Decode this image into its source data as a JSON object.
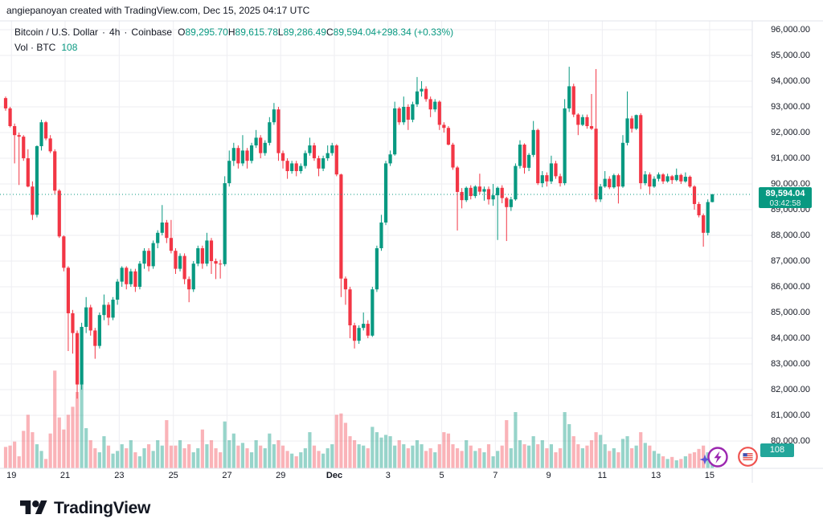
{
  "attribution": "angiepanoyan created with TradingView.com, Dec 15, 2025 04:17 UTC",
  "legend": {
    "symbol": "Bitcoin / U.S. Dollar",
    "separator": "·",
    "interval": "4h",
    "exchange": "Coinbase",
    "ohlc": [
      {
        "k": "O",
        "v": "89,295.70"
      },
      {
        "k": "H",
        "v": "89,615.78"
      },
      {
        "k": "L",
        "v": "89,286.49"
      },
      {
        "k": "C",
        "v": "89,594.04"
      }
    ],
    "change": "+298.34 (+0.33%)",
    "vol_label": "Vol · BTC",
    "vol_value": "108"
  },
  "price_scale": {
    "labels": [
      "96,000.00",
      "95,000.00",
      "94,000.00",
      "93,000.00",
      "92,000.00",
      "91,000.00",
      "90,000.00",
      "89,000.00",
      "88,000.00",
      "87,000.00",
      "86,000.00",
      "85,000.00",
      "84,000.00",
      "83,000.00",
      "82,000.00",
      "81,000.00",
      "80,000.00"
    ],
    "last": {
      "price": "89,594.04",
      "countdown": "03:42:58"
    },
    "volume_badge": "108"
  },
  "time_scale": {
    "ticks": [
      {
        "label": "19",
        "index": 1.3,
        "bold": false
      },
      {
        "label": "21",
        "index": 13.3,
        "bold": false
      },
      {
        "label": "23",
        "index": 25.4,
        "bold": false
      },
      {
        "label": "25",
        "index": 37.5,
        "bold": false
      },
      {
        "label": "27",
        "index": 49.5,
        "bold": false
      },
      {
        "label": "29",
        "index": 61.5,
        "bold": false
      },
      {
        "label": "Dec",
        "index": 73.5,
        "bold": true
      },
      {
        "label": "3",
        "index": 85.5,
        "bold": false
      },
      {
        "label": "5",
        "index": 97.5,
        "bold": false
      },
      {
        "label": "7",
        "index": 109.5,
        "bold": false
      },
      {
        "label": "9",
        "index": 121.4,
        "bold": false
      },
      {
        "label": "11",
        "index": 133.4,
        "bold": false
      },
      {
        "label": "13",
        "index": 145.4,
        "bold": false
      },
      {
        "label": "15",
        "index": 157.4,
        "bold": false
      }
    ]
  },
  "logo": {
    "text": "TradingView"
  },
  "icons": {
    "purple_lightning": "flash-boost-icon",
    "sparkle": "sparkle-icon",
    "us_flag": "us-economic-events-icon"
  },
  "colors": {
    "up": "#089981",
    "down": "#f23645",
    "vol_up": "rgba(8,153,129,0.42)",
    "vol_down": "rgba(242,54,69,0.38)",
    "grid": "#eeeef2",
    "axis_line": "#e0e3eb",
    "text": "#131722",
    "accent": "#089981",
    "price_badge_bg": "#089981",
    "vol_badge_bg": "#22a69a",
    "purple_icon": "#9c27b0",
    "sparkle_icon": "#5b55d6",
    "flag_ring": "#ef5350",
    "flag_blue": "#3f51b5"
  },
  "chart_data": {
    "type": "candlestick+volume",
    "symbol": "Bitcoin / U.S. Dollar",
    "interval": "4h",
    "exchange": "Coinbase",
    "x_range": {
      "start": "Nov 19",
      "end": "Dec 15",
      "candles_per_day": 6
    },
    "y_axis": {
      "min": 80000,
      "max": 96000,
      "tick_step": 1000,
      "grid": true
    },
    "last_candle": {
      "open": 89295.7,
      "high": 89615.78,
      "low": 89286.49,
      "close": 89594.04,
      "change": 298.34,
      "change_pct": 0.33,
      "volume_btc": 108
    },
    "current_price": 89594.04,
    "fields": [
      "open",
      "high",
      "low",
      "close",
      "volume_btc_est"
    ],
    "candles": [
      [
        93340,
        93400,
        92850,
        92940,
        160
      ],
      [
        92940,
        93000,
        92200,
        92250,
        170
      ],
      [
        92250,
        92350,
        90800,
        91900,
        200
      ],
      [
        91900,
        92000,
        89960,
        91840,
        90
      ],
      [
        91840,
        91900,
        90900,
        91000,
        280
      ],
      [
        91000,
        91350,
        89870,
        89900,
        400
      ],
      [
        89900,
        90100,
        88600,
        88800,
        270
      ],
      [
        88800,
        91500,
        88700,
        91470,
        180
      ],
      [
        91470,
        92500,
        91300,
        92400,
        130
      ],
      [
        92400,
        92450,
        91700,
        91770,
        70
      ],
      [
        91770,
        91900,
        91200,
        91270,
        260
      ],
      [
        91270,
        91350,
        89600,
        89740,
        730
      ],
      [
        89740,
        89800,
        87900,
        87960,
        380
      ],
      [
        87960,
        88000,
        86600,
        86740,
        290
      ],
      [
        86740,
        86800,
        83500,
        84970,
        400
      ],
      [
        84970,
        85100,
        83400,
        84200,
        460
      ],
      [
        84200,
        84300,
        81650,
        82200,
        570
      ],
      [
        82200,
        84600,
        82000,
        84440,
        660
      ],
      [
        84440,
        85600,
        84200,
        85200,
        300
      ],
      [
        85200,
        85300,
        84100,
        84300,
        210
      ],
      [
        84300,
        84400,
        83200,
        83700,
        150
      ],
      [
        83700,
        85000,
        83600,
        84900,
        120
      ],
      [
        84900,
        85700,
        84700,
        85300,
        240
      ],
      [
        85300,
        85400,
        84500,
        84800,
        170
      ],
      [
        84800,
        85600,
        84700,
        85500,
        110
      ],
      [
        85500,
        86300,
        85300,
        86200,
        130
      ],
      [
        86200,
        86800,
        86000,
        86740,
        180
      ],
      [
        86740,
        86800,
        85900,
        86100,
        150
      ],
      [
        86100,
        86700,
        86000,
        86600,
        210
      ],
      [
        86600,
        86700,
        85800,
        86000,
        120
      ],
      [
        86000,
        87000,
        85900,
        86900,
        90
      ],
      [
        86900,
        87500,
        86700,
        87400,
        150
      ],
      [
        87400,
        87500,
        86600,
        86800,
        180
      ],
      [
        86800,
        87800,
        86700,
        87700,
        130
      ],
      [
        87700,
        88200,
        87500,
        88100,
        210
      ],
      [
        88100,
        89180,
        88000,
        88500,
        170
      ],
      [
        88500,
        88600,
        87700,
        87900,
        360
      ],
      [
        87900,
        88600,
        87300,
        87400,
        170
      ],
      [
        87400,
        87500,
        86500,
        86700,
        170
      ],
      [
        86700,
        87300,
        86600,
        87200,
        210
      ],
      [
        87200,
        87300,
        86100,
        86300,
        150
      ],
      [
        86300,
        86400,
        85400,
        85900,
        180
      ],
      [
        85900,
        87000,
        85800,
        86900,
        120
      ],
      [
        86900,
        87600,
        86800,
        87500,
        150
      ],
      [
        87500,
        87600,
        86700,
        86900,
        290
      ],
      [
        86900,
        88100,
        86800,
        87800,
        180
      ],
      [
        87800,
        87900,
        86500,
        87000,
        210
      ],
      [
        87000,
        87100,
        86300,
        86900,
        150
      ],
      [
        86900,
        87050,
        86320,
        86880,
        120
      ],
      [
        86880,
        90300,
        86800,
        90030,
        350
      ],
      [
        90030,
        91300,
        89900,
        90900,
        210
      ],
      [
        90900,
        91600,
        90700,
        91400,
        260
      ],
      [
        91400,
        91500,
        90600,
        90800,
        170
      ],
      [
        90800,
        91900,
        90700,
        91300,
        190
      ],
      [
        91300,
        91400,
        90600,
        90900,
        150
      ],
      [
        90900,
        91600,
        90800,
        91500,
        120
      ],
      [
        91500,
        92100,
        91400,
        91800,
        210
      ],
      [
        91800,
        91900,
        91000,
        91200,
        170
      ],
      [
        91200,
        91700,
        91100,
        91600,
        150
      ],
      [
        91600,
        92600,
        91500,
        92400,
        260
      ],
      [
        92400,
        93150,
        92300,
        92900,
        180
      ],
      [
        92900,
        93000,
        90900,
        91200,
        210
      ],
      [
        91200,
        91300,
        90600,
        90900,
        170
      ],
      [
        90900,
        91000,
        90200,
        90500,
        130
      ],
      [
        90500,
        90900,
        90400,
        90800,
        110
      ],
      [
        90800,
        90900,
        90300,
        90500,
        90
      ],
      [
        90500,
        90800,
        90400,
        90700,
        120
      ],
      [
        90700,
        91300,
        90600,
        91200,
        150
      ],
      [
        91200,
        91800,
        91100,
        91500,
        270
      ],
      [
        91500,
        91600,
        90900,
        91000,
        170
      ],
      [
        91000,
        91100,
        90300,
        90600,
        130
      ],
      [
        90600,
        91100,
        90500,
        91000,
        110
      ],
      [
        91000,
        91500,
        90900,
        91200,
        150
      ],
      [
        91200,
        91600,
        91100,
        91500,
        180
      ],
      [
        91500,
        91550,
        90300,
        90370,
        400
      ],
      [
        90370,
        90400,
        85600,
        86320,
        410
      ],
      [
        86320,
        86400,
        85300,
        85900,
        340
      ],
      [
        85900,
        86000,
        84000,
        84500,
        240
      ],
      [
        84500,
        84600,
        83600,
        83900,
        210
      ],
      [
        83900,
        84500,
        83780,
        84400,
        180
      ],
      [
        84400,
        85000,
        84300,
        84560,
        170
      ],
      [
        84560,
        84700,
        84000,
        84100,
        150
      ],
      [
        84100,
        86000,
        84050,
        85900,
        310
      ],
      [
        85900,
        87600,
        85800,
        87500,
        270
      ],
      [
        87500,
        88800,
        87400,
        88500,
        230
      ],
      [
        88500,
        90900,
        88400,
        90800,
        250
      ],
      [
        90800,
        91300,
        90700,
        91150,
        240
      ],
      [
        91150,
        93200,
        91100,
        92940,
        170
      ],
      [
        92940,
        93000,
        92300,
        92400,
        210
      ],
      [
        92400,
        93400,
        92300,
        93000,
        180
      ],
      [
        93000,
        93100,
        92100,
        92500,
        150
      ],
      [
        92500,
        93200,
        92400,
        93100,
        170
      ],
      [
        93100,
        94160,
        93000,
        93600,
        210
      ],
      [
        93600,
        94000,
        93400,
        93700,
        180
      ],
      [
        93700,
        93800,
        93200,
        93300,
        130
      ],
      [
        93300,
        93400,
        92600,
        92900,
        150
      ],
      [
        92900,
        93300,
        92800,
        93200,
        120
      ],
      [
        93200,
        93250,
        92100,
        92300,
        180
      ],
      [
        92300,
        92400,
        92000,
        92180,
        270
      ],
      [
        92180,
        92250,
        91500,
        91530,
        260
      ],
      [
        91530,
        91600,
        90550,
        90640,
        180
      ],
      [
        90640,
        90700,
        88190,
        89690,
        150
      ],
      [
        89690,
        89840,
        89050,
        89370,
        130
      ],
      [
        89370,
        89900,
        89300,
        89850,
        210
      ],
      [
        89850,
        89950,
        89400,
        89530,
        170
      ],
      [
        89530,
        89950,
        89450,
        89900,
        130
      ],
      [
        89900,
        90400,
        89600,
        89700,
        150
      ],
      [
        89700,
        89900,
        89350,
        89800,
        120
      ],
      [
        89800,
        89900,
        89200,
        89400,
        180
      ],
      [
        89400,
        90000,
        89150,
        89560,
        90
      ],
      [
        89560,
        89900,
        87820,
        89850,
        130
      ],
      [
        89850,
        89950,
        89250,
        89450,
        170
      ],
      [
        89450,
        89500,
        87780,
        89100,
        360
      ],
      [
        89100,
        89500,
        88950,
        89400,
        150
      ],
      [
        89400,
        90800,
        89350,
        90700,
        420
      ],
      [
        90700,
        91700,
        90600,
        91530,
        210
      ],
      [
        91530,
        91580,
        90400,
        90630,
        180
      ],
      [
        90630,
        91200,
        90500,
        91130,
        170
      ],
      [
        91130,
        92450,
        91050,
        92100,
        240
      ],
      [
        92100,
        92150,
        89960,
        90030,
        180
      ],
      [
        90030,
        90500,
        89870,
        90340,
        210
      ],
      [
        90340,
        90450,
        89900,
        90100,
        150
      ],
      [
        90100,
        91100,
        90000,
        90800,
        180
      ],
      [
        90800,
        90900,
        90200,
        90300,
        120
      ],
      [
        90300,
        90400,
        89900,
        90030,
        150
      ],
      [
        90030,
        93300,
        89950,
        92940,
        420
      ],
      [
        92940,
        94560,
        92800,
        93800,
        330
      ],
      [
        93800,
        93900,
        92600,
        92700,
        240
      ],
      [
        92700,
        92750,
        91900,
        92300,
        180
      ],
      [
        92300,
        92700,
        92250,
        92600,
        150
      ],
      [
        92600,
        92700,
        92150,
        92250,
        170
      ],
      [
        92250,
        93500,
        92100,
        92150,
        210
      ],
      [
        92150,
        94470,
        89300,
        89400,
        270
      ],
      [
        89400,
        90000,
        89300,
        89900,
        250
      ],
      [
        89900,
        90500,
        89850,
        90200,
        180
      ],
      [
        90200,
        90300,
        89800,
        89870,
        130
      ],
      [
        89870,
        90400,
        89820,
        90340,
        150
      ],
      [
        90340,
        90400,
        89240,
        89900,
        120
      ],
      [
        89900,
        91900,
        89850,
        91600,
        220
      ],
      [
        91600,
        93600,
        91500,
        92550,
        240
      ],
      [
        92550,
        92650,
        92000,
        92150,
        150
      ],
      [
        92150,
        92700,
        92100,
        92680,
        170
      ],
      [
        92680,
        92750,
        89800,
        90030,
        270
      ],
      [
        90030,
        90500,
        89950,
        90370,
        190
      ],
      [
        90370,
        90450,
        89600,
        89900,
        170
      ],
      [
        89900,
        90300,
        89850,
        90200,
        130
      ],
      [
        90200,
        90450,
        90100,
        90370,
        110
      ],
      [
        90370,
        90420,
        90000,
        90100,
        90
      ],
      [
        90100,
        90400,
        90050,
        90300,
        70
      ],
      [
        90300,
        90350,
        90000,
        90150,
        85
      ],
      [
        90150,
        90600,
        90100,
        90350,
        60
      ],
      [
        90350,
        90400,
        90000,
        90100,
        70
      ],
      [
        90100,
        90450,
        90050,
        90280,
        90
      ],
      [
        90280,
        90330,
        89850,
        89900,
        110
      ],
      [
        89900,
        89950,
        89000,
        89220,
        120
      ],
      [
        89220,
        89300,
        88700,
        88780,
        145
      ],
      [
        88780,
        88850,
        87560,
        88100,
        170
      ],
      [
        88100,
        89400,
        88000,
        89295.7,
        120
      ],
      [
        89295.7,
        89615.78,
        89286.49,
        89594.04,
        108
      ]
    ]
  }
}
